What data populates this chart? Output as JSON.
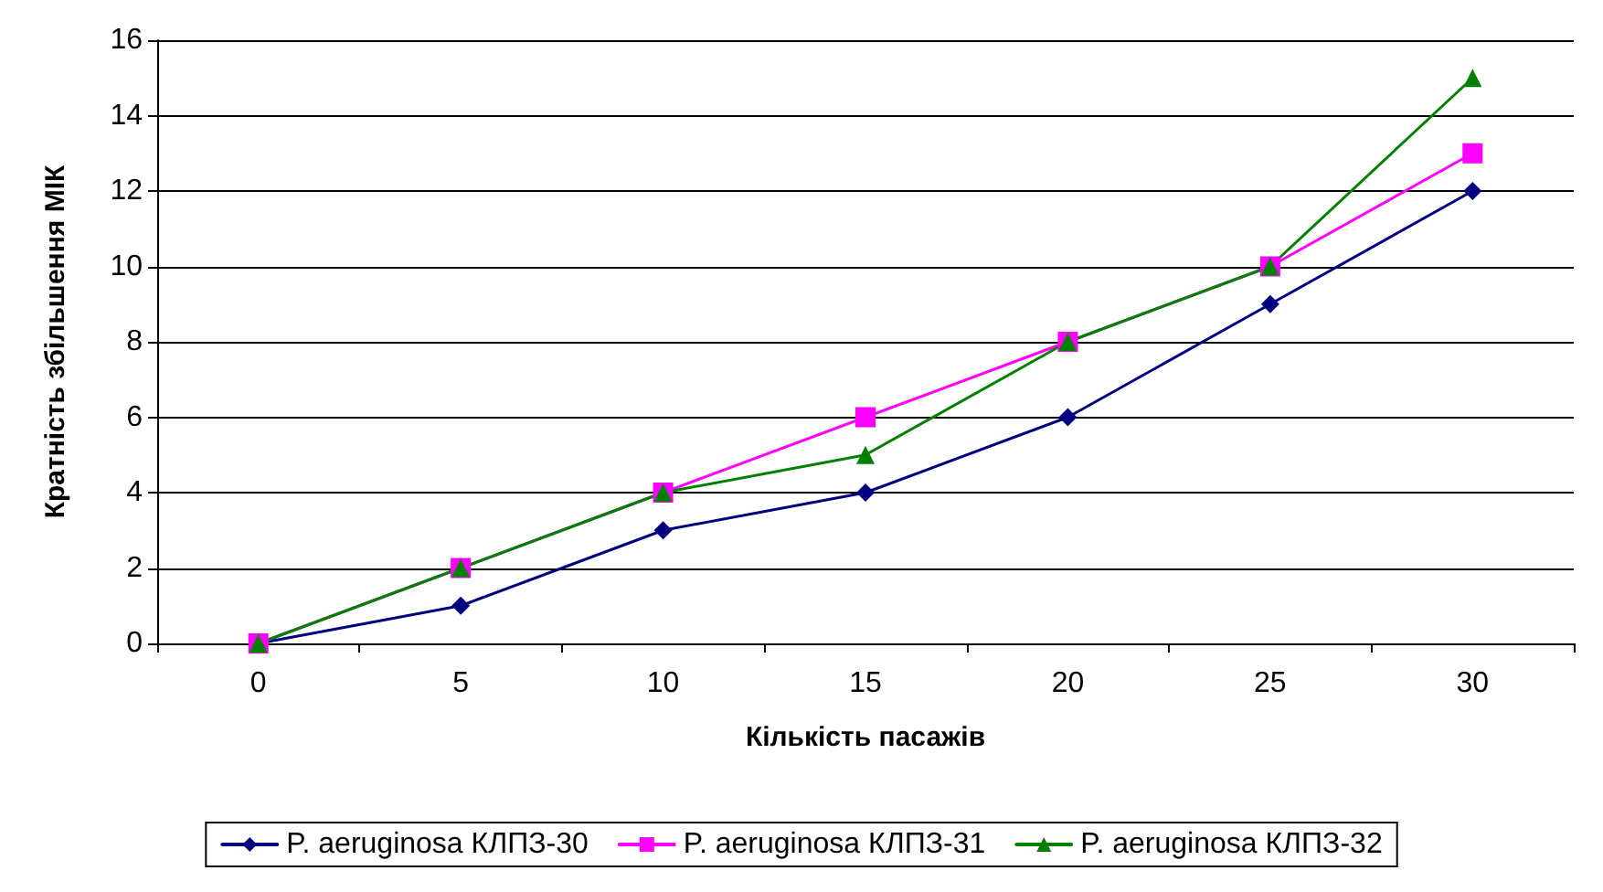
{
  "chart_data": {
    "type": "line",
    "xlabel": "Кількість пасажів",
    "ylabel": "Кратність збільшення МІК",
    "categories": [
      "0",
      "5",
      "10",
      "15",
      "20",
      "25",
      "30"
    ],
    "ylim": [
      0,
      16
    ],
    "yticks": [
      0,
      2,
      4,
      6,
      8,
      10,
      12,
      14,
      16
    ],
    "grid": "y",
    "legend": "bottom",
    "line_style": "solid",
    "series": [
      {
        "name": "P. aeruginosa КЛПЗ-30",
        "color": "#000080",
        "marker": "diamond",
        "values": [
          0,
          1,
          3,
          4,
          6,
          9,
          12
        ]
      },
      {
        "name": "P. aeruginosa КЛПЗ-31",
        "color": "#ff00ff",
        "marker": "square",
        "values": [
          0,
          2,
          4,
          6,
          8,
          10,
          13
        ]
      },
      {
        "name": "P. aeruginosa КЛПЗ-32",
        "color": "#008000",
        "marker": "triangle",
        "values": [
          0,
          2,
          4,
          5,
          8,
          10,
          15
        ]
      }
    ]
  }
}
